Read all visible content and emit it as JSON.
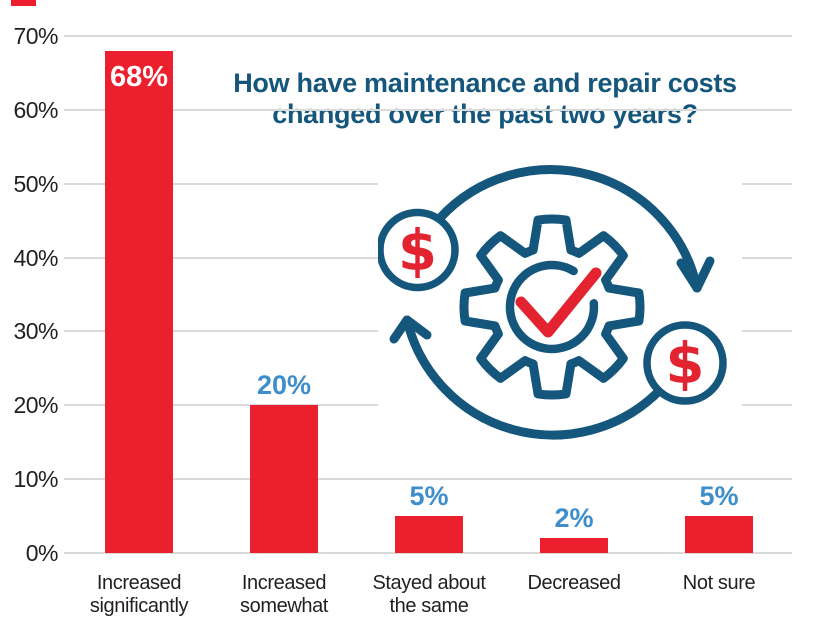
{
  "page": {
    "background": "#FFFFFF"
  },
  "decor": {
    "red_mark_present": true
  },
  "chart_data": {
    "type": "bar",
    "title": "How have maintenance and repair costs changed over the past two years?",
    "title_lines": [
      "How have maintenance and repair costs",
      "changed over the past two years?"
    ],
    "categories": [
      "Increased significantly",
      "Increased somewhat",
      "Stayed about the same",
      "Decreased",
      "Not sure"
    ],
    "category_lines": [
      [
        "Increased",
        "significantly"
      ],
      [
        "Increased",
        "somewhat"
      ],
      [
        "Stayed about",
        "the same"
      ],
      [
        "Decreased"
      ],
      [
        "Not sure"
      ]
    ],
    "values": [
      68,
      20,
      5,
      2,
      5
    ],
    "value_labels": [
      "68%",
      "20%",
      "5%",
      "2%",
      "5%"
    ],
    "y_ticks": [
      0,
      10,
      20,
      30,
      40,
      50,
      60,
      70
    ],
    "y_tick_labels": [
      "0%",
      "10%",
      "20%",
      "30%",
      "40%",
      "50%",
      "60%",
      "70%"
    ],
    "ylim": [
      0,
      70
    ],
    "grid": "horizontal",
    "legend": "none",
    "xlabel": "",
    "ylabel": ""
  },
  "colors": {
    "bar_red": "#EB1F2D",
    "value_label_blue": "#3E8ECB",
    "value_label_on_bar": "#FFFFFF",
    "title_teal": "#14567C",
    "axis_text": "#231F20",
    "gridline": "#DADADA",
    "illustration_teal": "#14567C",
    "illustration_red": "#E32430",
    "background": "#FFFFFF"
  },
  "illustration": {
    "name": "cost-cycle-gear-check-dollar",
    "dollar_symbol": "$",
    "elements": [
      "circular-arrow-top",
      "circular-arrow-bottom",
      "gear",
      "check-mark",
      "dollar-coin-top-left",
      "dollar-coin-bottom-right"
    ]
  }
}
